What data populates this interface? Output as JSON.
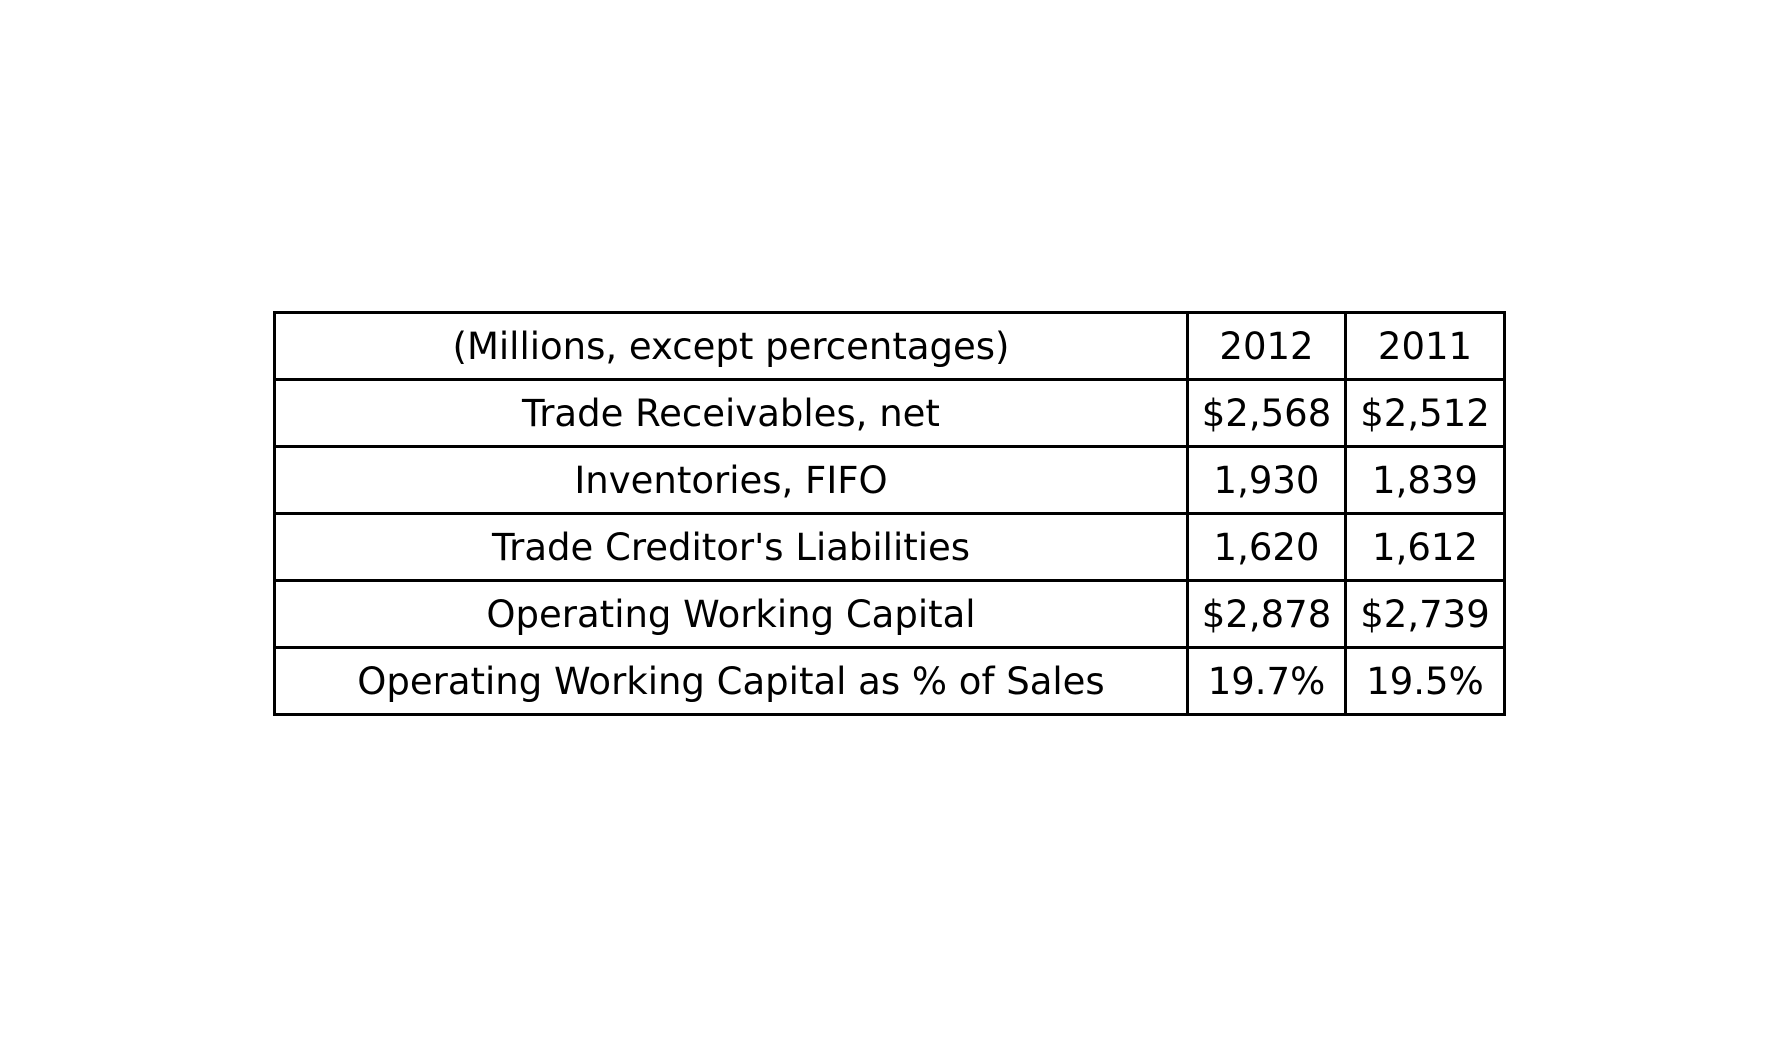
{
  "chart_data": {
    "type": "table",
    "columns": [
      "(Millions, except percentages)",
      "2012",
      "2011"
    ],
    "rows": [
      [
        "Trade Receivables, net",
        "$2,568",
        "$2,512"
      ],
      [
        "Inventories, FIFO",
        "1,930",
        "1,839"
      ],
      [
        "Trade Creditor's Liabilities",
        "1,620",
        "1,612"
      ],
      [
        "Operating Working Capital",
        "$2,878",
        "$2,739"
      ],
      [
        "Operating Working Capital as % of Sales",
        "19.7%",
        "19.5%"
      ]
    ]
  }
}
